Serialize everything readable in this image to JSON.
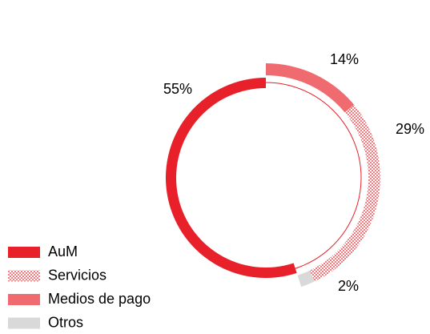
{
  "chart_data": {
    "type": "pie",
    "categories": [
      "AuM",
      "Servicios",
      "Medios de pago",
      "Otros"
    ],
    "values": [
      55,
      29,
      14,
      2
    ],
    "value_labels": [
      "55%",
      "29%",
      "14%",
      "2%"
    ],
    "colors": [
      "#e8202a",
      "#f27c80",
      "#f06b6f",
      "#d9d9d9"
    ],
    "patterns": [
      null,
      "checker",
      null,
      null
    ],
    "exploded": [
      false,
      true,
      true,
      true
    ]
  }
}
